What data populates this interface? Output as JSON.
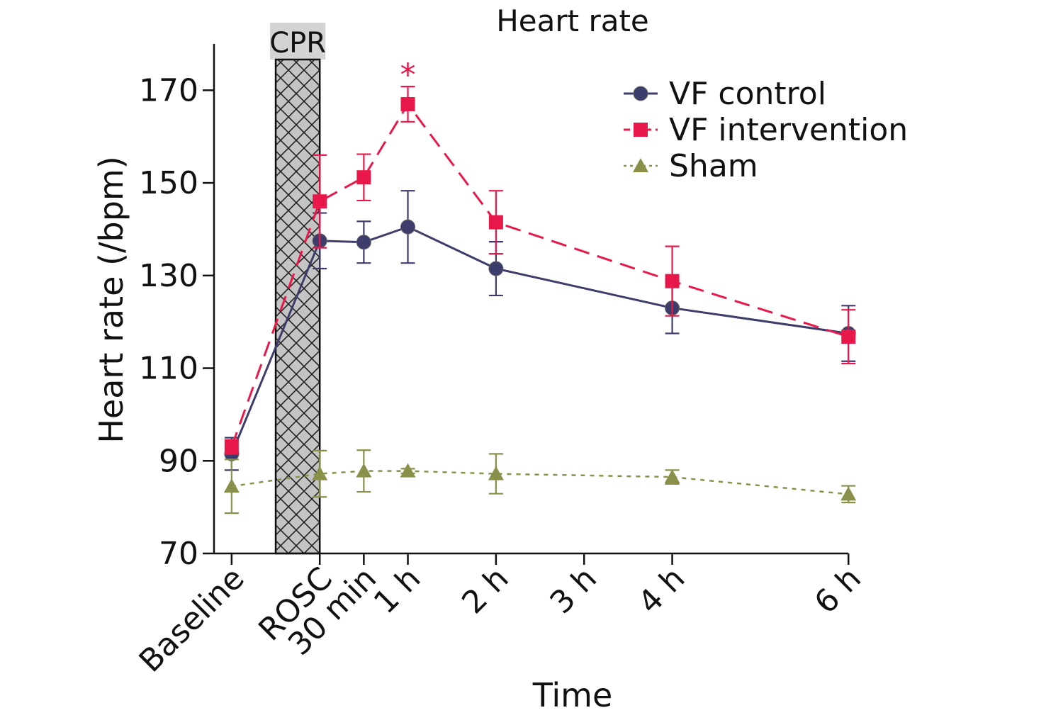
{
  "chart_data": {
    "type": "line",
    "title": "Heart rate",
    "xlabel": "Time",
    "ylabel": "Heart rate (/bpm)",
    "ylim": [
      70,
      180
    ],
    "yticks": [
      70,
      90,
      110,
      130,
      150,
      170
    ],
    "xlim": [
      -2.4,
      14.2
    ],
    "categories": [
      "Baseline",
      "ROSC",
      "30 min",
      "1 h",
      "2 h",
      "3 h",
      "4 h",
      "6 h"
    ],
    "category_x": [
      -2,
      0,
      1,
      2,
      4,
      6,
      8,
      12
    ],
    "shaded_region": {
      "label": "CPR",
      "x": [
        -1,
        0
      ],
      "pattern": "crosshatch"
    },
    "annotations": [
      {
        "text": "*",
        "x": 2,
        "y": 173.5,
        "color": "#e8194a"
      }
    ],
    "legend": {
      "position": "top-right"
    },
    "grid": false,
    "series": [
      {
        "name": "VF control",
        "color": "#3d3d6b",
        "marker": "circle",
        "line": "solid",
        "points": [
          {
            "x": -2,
            "y": 91.5,
            "err": 3.5
          },
          {
            "x": 0,
            "y": 137.5,
            "err": 6
          },
          {
            "x": 1,
            "y": 137.2,
            "err": 4.5
          },
          {
            "x": 2,
            "y": 140.5,
            "err": 7.8
          },
          {
            "x": 4,
            "y": 131.5,
            "err": 5.8
          },
          {
            "x": 8,
            "y": 123,
            "err": 5.5
          },
          {
            "x": 12,
            "y": 117.5,
            "err": 6
          }
        ]
      },
      {
        "name": "VF intervention",
        "color": "#e8194a",
        "marker": "square",
        "line": "dashed",
        "points": [
          {
            "x": -2,
            "y": 93,
            "err": 1.5
          },
          {
            "x": 0,
            "y": 146,
            "err": 10
          },
          {
            "x": 1,
            "y": 151.2,
            "err": 5
          },
          {
            "x": 2,
            "y": 167,
            "err": 3.8
          },
          {
            "x": 4,
            "y": 141.5,
            "err": 6.8
          },
          {
            "x": 8,
            "y": 128.8,
            "err": 7.5
          },
          {
            "x": 12,
            "y": 116.8,
            "err": 5.8
          }
        ]
      },
      {
        "name": "Sham",
        "color": "#8a8f4a",
        "marker": "triangle",
        "line": "dotted",
        "points": [
          {
            "x": -2,
            "y": 84.5,
            "err": 5.8
          },
          {
            "x": 0,
            "y": 87.2,
            "err": 5
          },
          {
            "x": 1,
            "y": 87.8,
            "err": 4.5
          },
          {
            "x": 2,
            "y": 87.8,
            "err": 0.5
          },
          {
            "x": 4,
            "y": 87.2,
            "err": 4.3
          },
          {
            "x": 8,
            "y": 86.5,
            "err": 1.5
          },
          {
            "x": 12,
            "y": 82.8,
            "err": 1.8
          }
        ]
      }
    ]
  }
}
